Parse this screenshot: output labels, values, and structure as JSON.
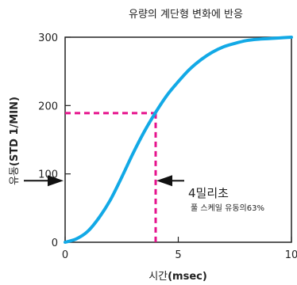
{
  "chart_data": {
    "type": "line",
    "title": "유량의 계단형 변화에 반응",
    "xlabel_prefix": "시간",
    "xlabel_unit": "(msec)",
    "ylabel_prefix": "유동",
    "ylabel_unit": "(STD 1/MIN)",
    "xlim": [
      0,
      10
    ],
    "ylim": [
      0,
      300
    ],
    "xticks": [
      0,
      5,
      10
    ],
    "yticks": [
      0,
      100,
      200,
      300
    ],
    "grid": false,
    "series": [
      {
        "color": "#12a9e6",
        "x": [
          0,
          0.5,
          1,
          1.5,
          2,
          2.5,
          3,
          3.5,
          4,
          4.5,
          5,
          5.5,
          6,
          6.5,
          7,
          7.5,
          8,
          8.5,
          9,
          9.5,
          10
        ],
        "y": [
          0,
          5,
          16,
          36,
          62,
          95,
          130,
          162,
          190,
          215,
          235,
          253,
          267,
          278,
          286,
          291,
          295,
          297,
          298,
          299,
          300
        ]
      }
    ],
    "marker": {
      "x": 4,
      "y": 189,
      "color": "#e6128c",
      "label": "4밀리초",
      "sublabel": "풀 스케일 유동의63%"
    },
    "arrow_level": 90
  }
}
